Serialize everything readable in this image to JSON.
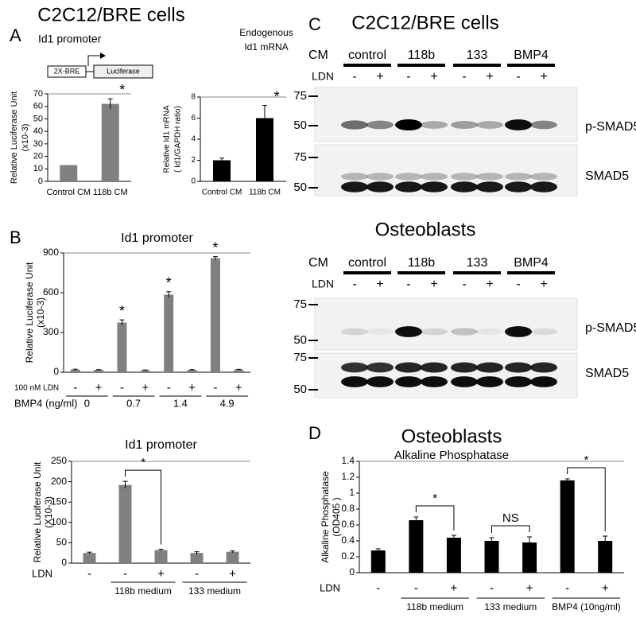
{
  "figure": {
    "panel_labels": [
      "A",
      "B",
      "C",
      "D"
    ],
    "A": {
      "title": "C2C12/BRE cells",
      "diagram_title": "Id1 promoter",
      "diagram_boxes": [
        "2X-BRE",
        "Luciferase"
      ],
      "mrna_title": [
        "Endogenous",
        "Id1 mRNA"
      ]
    },
    "D": {
      "title": "Osteoblasts",
      "subtitle": "Alkaline Phosphatase"
    }
  },
  "blots": [
    {
      "title": "C2C12/BRE cells",
      "cm_label": "CM",
      "ldn_label": "LDN",
      "groups": [
        "control",
        "118b",
        "133",
        "BMP4"
      ],
      "treatments": [
        "-",
        "+",
        "-",
        "+",
        "-",
        "+",
        "-",
        "+"
      ],
      "panels": [
        {
          "markers": [
            "75",
            "50"
          ],
          "label": "p-SMAD5"
        },
        {
          "markers": [
            "75",
            "50"
          ],
          "label": "SMAD5"
        }
      ]
    },
    {
      "title": "Osteoblasts",
      "cm_label": "CM",
      "ldn_label": "LDN",
      "groups": [
        "control",
        "118b",
        "133",
        "BMP4"
      ],
      "treatments": [
        "-",
        "+",
        "-",
        "+",
        "-",
        "+",
        "-",
        "+"
      ],
      "panels": [
        {
          "markers": [
            "75",
            "50"
          ],
          "label": "p-SMAD5"
        },
        {
          "markers": [
            "75",
            "50"
          ],
          "label": "SMAD5"
        }
      ]
    }
  ],
  "chart_data": [
    {
      "type": "bar",
      "ylabel": [
        "Relative Luciferase Unit",
        "(x10-3)"
      ],
      "categories": [
        "Control CM",
        "118b CM"
      ],
      "values": [
        13,
        62
      ],
      "errors": [
        null,
        4
      ],
      "value_annotations": [
        null,
        "*"
      ],
      "color": "#808080",
      "ylim": [
        0,
        70
      ],
      "yticks": [
        0,
        10,
        20,
        30,
        40,
        50,
        60,
        70
      ]
    },
    {
      "type": "bar",
      "ylabel": [
        "Relative  Id1 mRNA",
        "( Id1/GAPDH ratio)"
      ],
      "categories": [
        "Control CM",
        "118b CM"
      ],
      "values": [
        2,
        6
      ],
      "errors": [
        0.2,
        1.2
      ],
      "value_annotations": [
        null,
        "*"
      ],
      "color": "#000000",
      "ylim": [
        0,
        8
      ],
      "yticks": [
        0,
        2,
        4,
        6,
        8
      ]
    },
    {
      "type": "bar",
      "title": "Id1 promoter",
      "ylabel": [
        "Relative Luciferase Unit",
        "(x10-3)"
      ],
      "row_labels": [
        "100 nM LDN",
        "BMP4 (ng/ml)"
      ],
      "categories": [
        "-",
        "+",
        "-",
        "+",
        "-",
        "+",
        "-",
        "+"
      ],
      "groups": [
        "0",
        "0.7",
        "1.4",
        "4.9"
      ],
      "values": [
        20,
        18,
        375,
        15,
        585,
        18,
        860,
        20
      ],
      "errors": [
        3,
        2,
        20,
        2,
        22,
        2,
        12,
        2
      ],
      "value_annotations": [
        null,
        null,
        "*",
        null,
        "*",
        null,
        "*",
        null
      ],
      "color": "#808080",
      "ylim": [
        0,
        900
      ],
      "yticks": [
        0,
        300,
        600,
        900
      ]
    },
    {
      "type": "bar",
      "title": "Id1 promoter",
      "ylabel": [
        "Relative Luciferase Unit",
        "(X10-3)"
      ],
      "row_labels": [
        "LDN"
      ],
      "categories": [
        "-",
        "-",
        "+",
        "-",
        "+"
      ],
      "groups": [
        "118b medium",
        "133 medium"
      ],
      "values": [
        25,
        192,
        32,
        25,
        28
      ],
      "errors": [
        2,
        9,
        2,
        3,
        2
      ],
      "brackets": [
        "*"
      ],
      "color": "#808080",
      "ylim": [
        0,
        250
      ],
      "yticks": [
        0,
        50,
        100,
        150,
        200,
        250
      ]
    },
    {
      "type": "bar",
      "ylabel": [
        "Alkaline Phosphatase",
        "(OD405 )"
      ],
      "row_labels": [
        "LDN"
      ],
      "categories": [
        "-",
        "-",
        "+",
        "-",
        "+",
        "-",
        "+"
      ],
      "groups": [
        "118b medium",
        "133 medium",
        "BMP4 (10ng/ml)"
      ],
      "values": [
        0.28,
        0.66,
        0.44,
        0.4,
        0.38,
        1.16,
        0.4
      ],
      "errors": [
        0.02,
        0.04,
        0.03,
        0.04,
        0.07,
        0.02,
        0.06
      ],
      "brackets": [
        "*",
        "NS",
        "*"
      ],
      "color": "#000000",
      "ylim": [
        0,
        1.4
      ],
      "yticks": [
        0,
        0.2,
        0.4,
        0.6,
        0.8,
        1,
        1.2,
        1.4
      ]
    }
  ]
}
